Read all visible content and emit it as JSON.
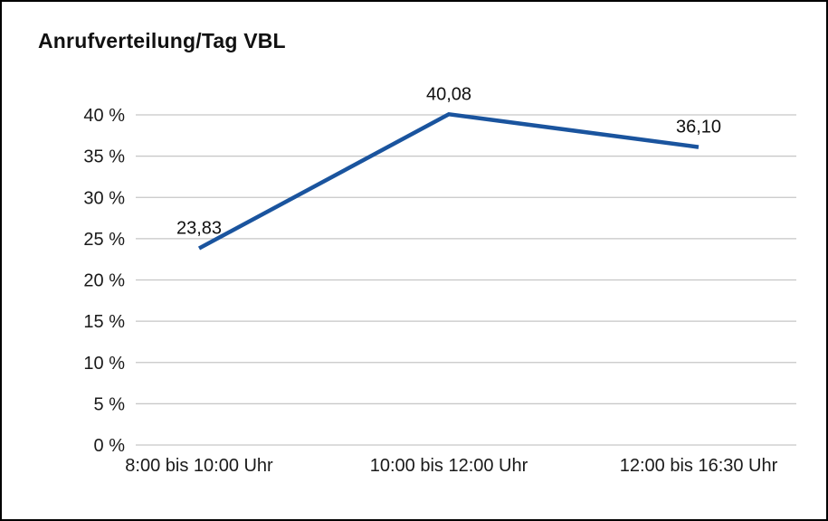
{
  "title": "Anrufverteilung/Tag VBL",
  "chart_data": {
    "type": "line",
    "title": "Anrufverteilung/Tag VBL",
    "categories": [
      "8:00 bis 10:00 Uhr",
      "10:00 bis 12:00 Uhr",
      "12:00 bis 16:30 Uhr"
    ],
    "values": [
      23.83,
      40.08,
      36.1
    ],
    "data_labels": [
      "23,83",
      "40,08",
      "36,10"
    ],
    "xlabel": "",
    "ylabel": "",
    "ylim": [
      0,
      40
    ],
    "ytick_step": 5,
    "ytick_suffix": " %",
    "grid": true,
    "legend": "none",
    "line_color": "#1a549e",
    "grid_color": "#c6c6c6",
    "text_color": "#1a1a1a"
  }
}
